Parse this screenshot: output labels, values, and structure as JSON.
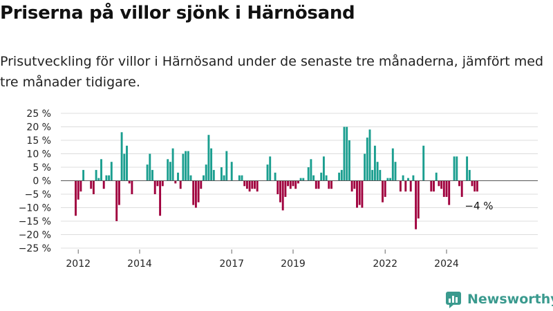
{
  "header": {
    "title": "Priserna på villor sjönk i Härnösand",
    "subtitle": "Prisutveckling för villor i Härnösand under de senaste tre månaderna, jämfört med tre månader tidigare."
  },
  "brand": {
    "name": "Newsworthy",
    "color": "#3a9a8e"
  },
  "chart_data": {
    "type": "bar",
    "x_axis": "month",
    "start": "2011-12",
    "x_ticks": [
      {
        "label": "2012",
        "month_index": 1
      },
      {
        "label": "2014",
        "month_index": 25
      },
      {
        "label": "2017",
        "month_index": 61
      },
      {
        "label": "2019",
        "month_index": 85
      },
      {
        "label": "2022",
        "month_index": 121
      },
      {
        "label": "2024",
        "month_index": 145
      }
    ],
    "y_ticks": [
      "25 %",
      "20 %",
      "15 %",
      "10 %",
      "5 %",
      "0 %",
      "−5 %",
      "−10 %",
      "−15 %",
      "−20 %",
      "−25 %"
    ],
    "ylim": [
      -25,
      25
    ],
    "grid": true,
    "colors": {
      "positive": "#1a9e8f",
      "negative": "#a0003e"
    },
    "values": [
      -13,
      -7,
      -4,
      4,
      0,
      0,
      -3,
      -5,
      4,
      1,
      8,
      -3,
      2,
      2,
      7,
      0,
      -15,
      -9,
      18,
      10,
      13,
      -1,
      -5,
      0,
      0,
      0,
      0,
      0,
      6,
      10,
      4,
      -5,
      -2,
      -13,
      -2,
      0,
      8,
      7,
      12,
      -1,
      3,
      -3,
      10,
      11,
      11,
      2,
      -9,
      -10,
      -8,
      -3,
      2,
      6,
      17,
      12,
      4,
      0,
      0,
      5,
      2,
      11,
      0,
      7,
      0,
      0,
      2,
      2,
      -2,
      -3,
      -4,
      -3,
      -3,
      -4,
      0,
      0,
      0,
      6,
      9,
      0,
      3,
      -5,
      -8,
      -11,
      -6,
      -2,
      -3,
      -2,
      -3,
      -1,
      1,
      1,
      0,
      5,
      8,
      2,
      -3,
      -3,
      3,
      9,
      2,
      -3,
      -3,
      0,
      0,
      3,
      4,
      20,
      20,
      15,
      -4,
      -3,
      -10,
      -9,
      -10,
      10,
      16,
      19,
      4,
      13,
      7,
      4,
      -8,
      -6,
      1,
      1,
      12,
      7,
      0,
      -4,
      2,
      -4,
      1,
      -4,
      2,
      -18,
      -14,
      0,
      13,
      0,
      0,
      -4,
      -4,
      3,
      -2,
      -3,
      -6,
      -6,
      -9,
      0,
      9,
      9,
      -2,
      -6,
      0,
      9,
      4,
      -2,
      -4,
      -4
    ],
    "annotations": [
      {
        "text": "−4 %"
      }
    ]
  }
}
